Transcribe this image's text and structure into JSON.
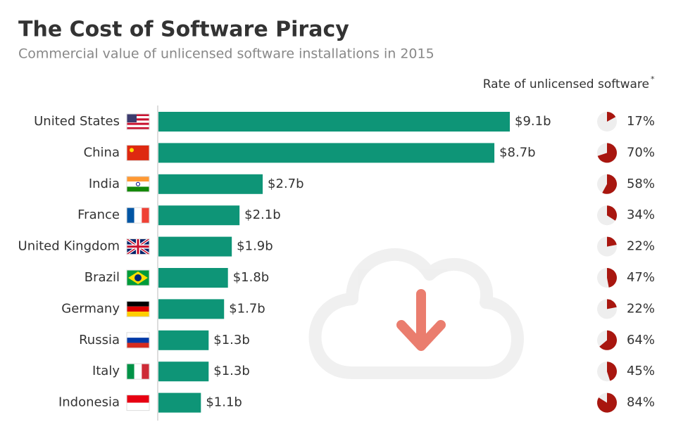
{
  "chart_data": {
    "type": "bar",
    "title": "The Cost of Software Piracy",
    "subtitle": "Commercial value of unlicensed software installations in 2015",
    "rate_header": "Rate of unlicensed software",
    "rate_header_mark": "*",
    "categories": [
      "United States",
      "China",
      "India",
      "France",
      "United Kingdom",
      "Brazil",
      "Germany",
      "Russia",
      "Italy",
      "Indonesia"
    ],
    "series": [
      {
        "name": "Commercial value",
        "color": "#0e9577",
        "values": [
          9.1,
          8.7,
          2.7,
          2.1,
          1.9,
          1.8,
          1.7,
          1.3,
          1.3,
          1.1
        ],
        "value_labels": [
          "$9.1b",
          "$8.7b",
          "$2.7b",
          "$2.1b",
          "$1.9b",
          "$1.8b",
          "$1.7b",
          "$1.3b",
          "$1.3b",
          "$1.1b"
        ]
      },
      {
        "name": "Rate of unlicensed software",
        "color": "#a8160f",
        "values": [
          17,
          70,
          58,
          34,
          22,
          47,
          22,
          64,
          45,
          84
        ],
        "value_labels": [
          "17%",
          "70%",
          "58%",
          "34%",
          "22%",
          "47%",
          "22%",
          "64%",
          "45%",
          "84%"
        ]
      }
    ]
  }
}
